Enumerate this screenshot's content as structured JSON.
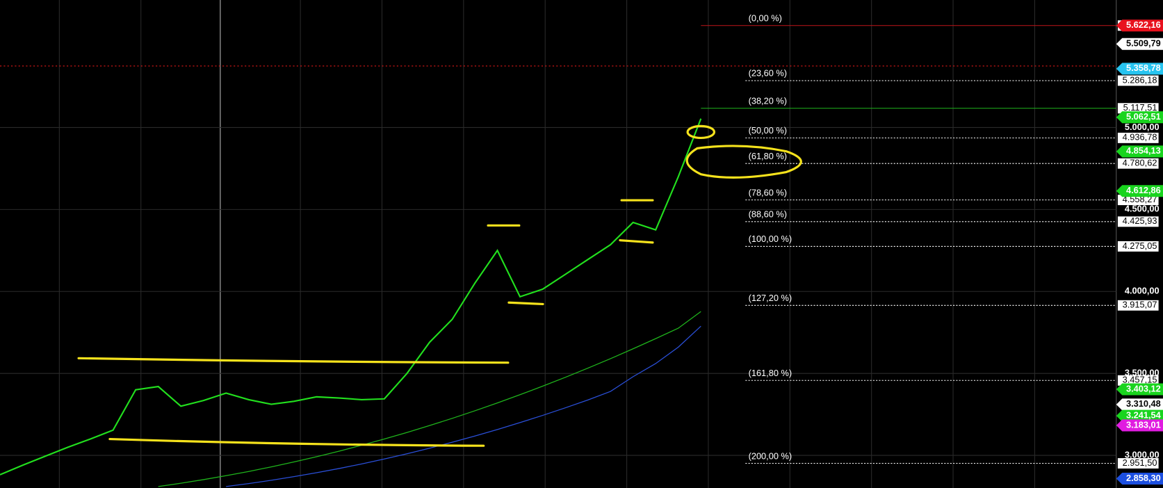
{
  "chart_data": {
    "type": "line",
    "ylim": [
      2801,
      5778
    ],
    "yticks": [
      {
        "value": 3000,
        "label": "3.000,00"
      },
      {
        "value": 3500,
        "label": "3.500,00"
      },
      {
        "value": 4000,
        "label": "4.000,00"
      },
      {
        "value": 4500,
        "label": "4.500,00"
      },
      {
        "value": 5000,
        "label": "5.000,00"
      }
    ],
    "grid": true,
    "series": [
      {
        "color": "#22e01e",
        "values": [
          2882,
          2940,
          2995,
          3050,
          3100,
          3154,
          3400,
          3420,
          3300,
          3335,
          3380,
          3340,
          3312,
          3330,
          3357,
          3350,
          3340,
          3345,
          3500,
          3690,
          3830,
          4050,
          4250,
          3968,
          4014,
          4104,
          4195,
          4285,
          4421,
          4376,
          4700,
          5054
        ]
      },
      {
        "color": "#1fb51c",
        "values": [
          null,
          null,
          null,
          null,
          null,
          null,
          null,
          2810,
          2830,
          2852,
          2876,
          2902,
          2930,
          2960,
          2992,
          3026,
          3062,
          3100,
          3140,
          3182,
          3226,
          3272,
          3320,
          3370,
          3422,
          3476,
          3532,
          3590,
          3650,
          3712,
          3776,
          3878
        ]
      },
      {
        "color": "#2a4fd8",
        "values": [
          null,
          null,
          null,
          null,
          null,
          null,
          null,
          null,
          null,
          null,
          2810,
          2828,
          2848,
          2870,
          2894,
          2920,
          2948,
          2978,
          3010,
          3044,
          3080,
          3118,
          3158,
          3200,
          3244,
          3290,
          3338,
          3390,
          3480,
          3560,
          3660,
          3788
        ]
      }
    ],
    "fib_levels": [
      {
        "label": "(0,00 %)",
        "value": 5622.16,
        "price_label": "5.622,16",
        "color": "#c0141a"
      },
      {
        "label": "(23,60 %)",
        "value": 5286.18,
        "price_label": "5.286,18",
        "color": "#ffffff"
      },
      {
        "label": "(38,20 %)",
        "value": 5117.51,
        "price_label": "5.117,51",
        "color": "#1fb51c"
      },
      {
        "label": "(50,00 %)",
        "value": 4936.78,
        "price_label": "4.936,78",
        "color": "#ffffff"
      },
      {
        "label": "(61,80 %)",
        "value": 4780.62,
        "price_label": "4.780,62",
        "color": "#ffffff"
      },
      {
        "label": "(78,60 %)",
        "value": 4558.27,
        "price_label": "4.558,27",
        "color": "#ffffff"
      },
      {
        "label": "(88,60 %)",
        "value": 4425.93,
        "price_label": "4.425,93",
        "color": "#ffffff"
      },
      {
        "label": "(100,00 %)",
        "value": 4275.05,
        "price_label": "4.275,05",
        "color": "#ffffff"
      },
      {
        "label": "(127,20 %)",
        "value": 3915.07,
        "price_label": "3.915,07",
        "color": "#ffffff"
      },
      {
        "label": "(161,80 %)",
        "value": 3457.15,
        "price_label": "3.457,15",
        "color": "#ffffff"
      },
      {
        "label": "(200,00 %)",
        "value": 2951.5,
        "price_label": "2.951,50",
        "color": "#ffffff"
      }
    ],
    "price_tags": [
      {
        "value": 5622.16,
        "label": "5.622,16",
        "color": "#e8121e",
        "text_color": "#ffffff"
      },
      {
        "value": 5509.79,
        "label": "5.509,79",
        "color": "#ffffff",
        "text_color": "#000000"
      },
      {
        "value": 5358.78,
        "label": "5.358,78",
        "color": "#27c4f0",
        "text_color": "#ffffff"
      },
      {
        "value": 5062.51,
        "label": "5.062,51",
        "color": "#19d41e",
        "text_color": "#ffffff"
      },
      {
        "value": 4854.13,
        "label": "4.854,13",
        "color": "#19d41e",
        "text_color": "#ffffff"
      },
      {
        "value": 4612.86,
        "label": "4.612,86",
        "color": "#19d41e",
        "text_color": "#ffffff"
      },
      {
        "value": 3403.12,
        "label": "3.403,12",
        "color": "#19d41e",
        "text_color": "#ffffff"
      },
      {
        "value": 3310.48,
        "label": "3.310,48",
        "color": "#ffffff",
        "text_color": "#000000"
      },
      {
        "value": 3241.54,
        "label": "3.241,54",
        "color": "#19d41e",
        "text_color": "#ffffff"
      },
      {
        "value": 3183.01,
        "label": "3.183,01",
        "color": "#e01ce0",
        "text_color": "#ffffff"
      },
      {
        "value": 2858.3,
        "label": "2.858,30",
        "color": "#1c4fe0",
        "text_color": "#ffffff"
      }
    ]
  }
}
